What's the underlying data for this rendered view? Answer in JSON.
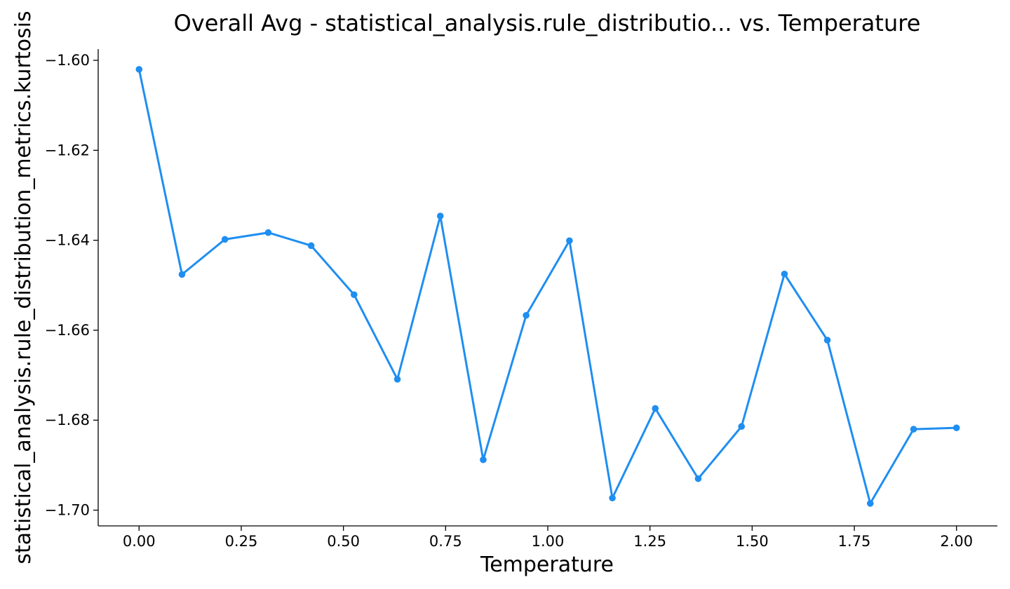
{
  "chart_data": {
    "type": "line",
    "title": "Overall Avg - statistical_analysis.rule_distributio... vs. Temperature",
    "xlabel": "Temperature",
    "ylabel": "statistical_analysis.rule_distribution_metrics.kurtosis",
    "xlim": [
      -0.1,
      2.1
    ],
    "ylim": [
      -1.7035,
      -1.5975
    ],
    "x_ticks": [
      0.0,
      0.25,
      0.5,
      0.75,
      1.0,
      1.25,
      1.5,
      1.75,
      2.0
    ],
    "x_tick_labels": [
      "0.00",
      "0.25",
      "0.50",
      "0.75",
      "1.00",
      "1.25",
      "1.50",
      "1.75",
      "2.00"
    ],
    "y_ticks": [
      -1.6,
      -1.62,
      -1.64,
      -1.66,
      -1.68,
      -1.7
    ],
    "y_tick_labels": [
      "−1.60",
      "−1.62",
      "−1.64",
      "−1.66",
      "−1.68",
      "−1.70"
    ],
    "grid": false,
    "series": [
      {
        "color": "#1f8ef1",
        "x": [
          0.0,
          0.105,
          0.21,
          0.316,
          0.421,
          0.526,
          0.632,
          0.737,
          0.842,
          0.947,
          1.053,
          1.158,
          1.263,
          1.368,
          1.474,
          1.579,
          1.684,
          1.789,
          1.895,
          2.0
        ],
        "values": [
          -1.602,
          -1.6476,
          -1.6398,
          -1.6383,
          -1.6412,
          -1.6521,
          -1.6709,
          -1.6346,
          -1.6888,
          -1.6567,
          -1.6401,
          -1.6973,
          -1.6774,
          -1.693,
          -1.6814,
          -1.6475,
          -1.6622,
          -1.6985,
          -1.682,
          -1.6817
        ]
      }
    ]
  }
}
